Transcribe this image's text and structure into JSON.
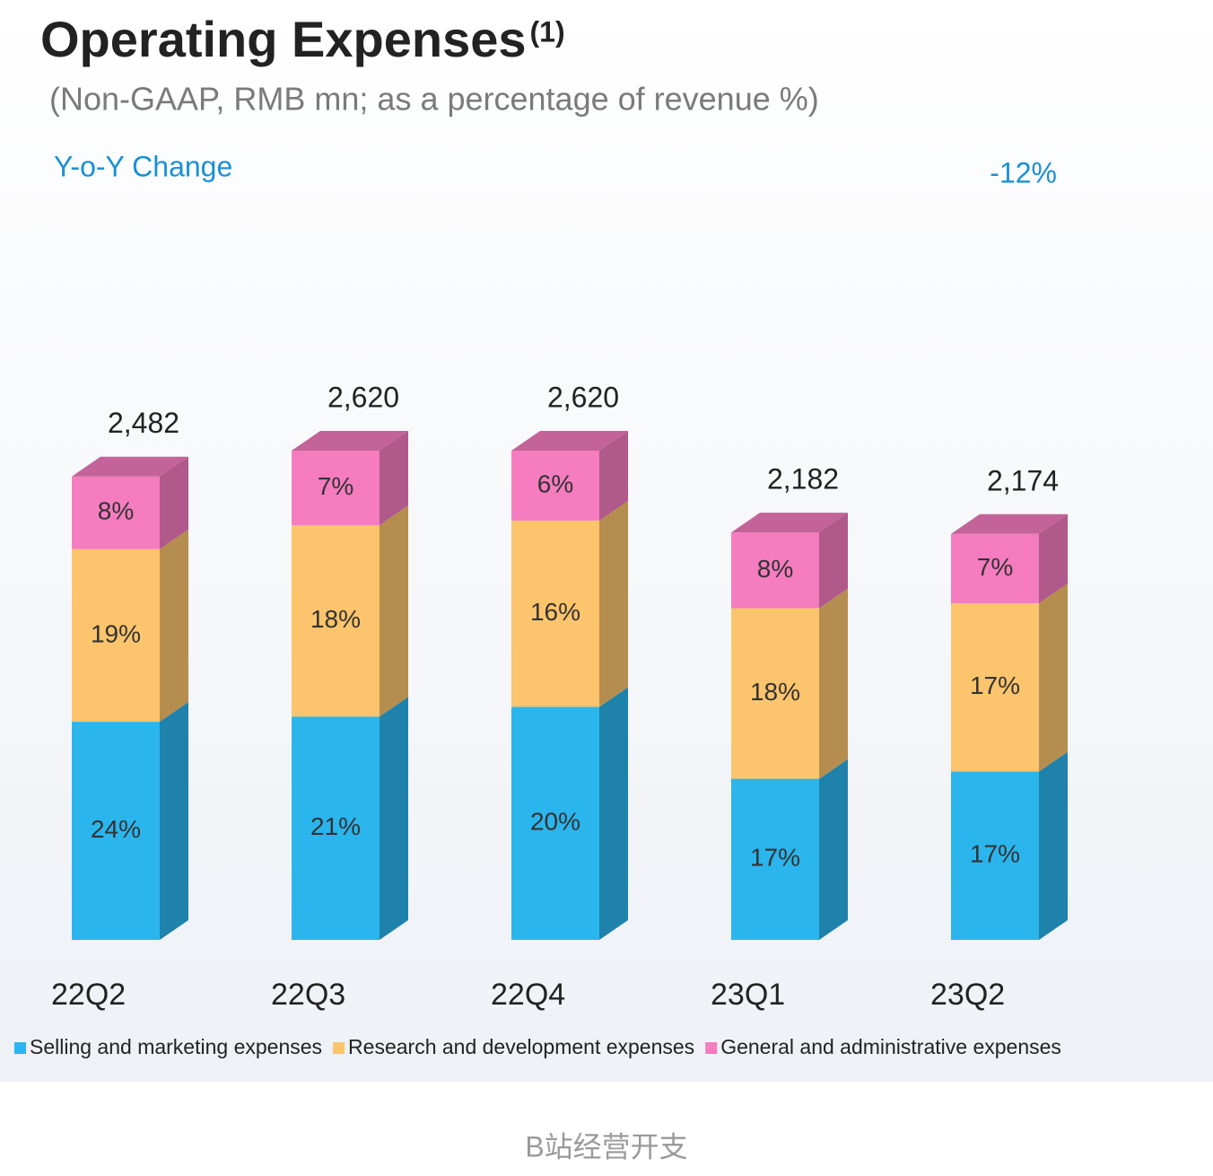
{
  "chart_data": {
    "type": "bar",
    "stacked": true,
    "title": "Operating Expenses",
    "title_note": "(1)",
    "subtitle": "(Non-GAAP, RMB mn; as a percentage of revenue %)",
    "annotations": [
      "Y-o-Y Change",
      "-12%"
    ],
    "categories": [
      "22Q2",
      "22Q3",
      "22Q4",
      "23Q1",
      "23Q2"
    ],
    "series": [
      {
        "name": "Selling and marketing expenses",
        "color": "#2bb5ed",
        "values": [
          24,
          21,
          20,
          17,
          17
        ],
        "value_labels": [
          "24%",
          "21%",
          "20%",
          "17%",
          "17%"
        ]
      },
      {
        "name": "Research and development expenses",
        "color": "#fcc46c",
        "values": [
          19,
          18,
          16,
          18,
          17
        ],
        "value_labels": [
          "19%",
          "18%",
          "16%",
          "18%",
          "17%"
        ]
      },
      {
        "name": "General and administrative expenses",
        "color": "#f47cbf",
        "values": [
          8,
          7,
          6,
          8,
          7
        ],
        "value_labels": [
          "8%",
          "7%",
          "6%",
          "8%",
          "7%"
        ]
      }
    ],
    "totals": {
      "values": [
        2482,
        2620,
        2620,
        2182,
        2174
      ],
      "value_labels": [
        "2,482",
        "2,620",
        "2,620",
        "2,182",
        "2,174"
      ]
    }
  },
  "caption": "B站经营开支"
}
